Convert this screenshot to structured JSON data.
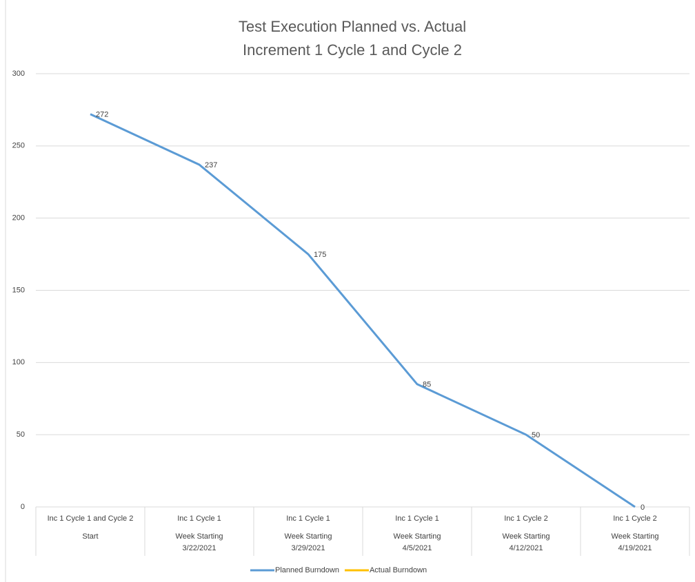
{
  "chart_data": {
    "type": "line",
    "title": [
      "Test Execution Planned vs. Actual",
      "Increment 1 Cycle 1 and Cycle 2"
    ],
    "categories": [
      [
        "Inc 1 Cycle 1 and Cycle 2",
        "Start"
      ],
      [
        "Inc 1 Cycle 1",
        "Week Starting 3/22/2021"
      ],
      [
        "Inc 1 Cycle 1",
        "Week Starting 3/29/2021"
      ],
      [
        "Inc 1 Cycle 1",
        "Week Starting 4/5/2021"
      ],
      [
        "Inc 1 Cycle 2",
        "Week Starting 4/12/2021"
      ],
      [
        "Inc 1 Cycle 2",
        "Week Starting 4/19/2021"
      ]
    ],
    "series": [
      {
        "name": "Planned Burndown",
        "color": "#5b9bd5",
        "values": [
          272,
          237,
          175,
          85,
          50,
          0
        ],
        "data_labels": true
      },
      {
        "name": "Actual Burndown",
        "color": "#ffc000",
        "values": [
          null,
          null,
          null,
          null,
          null,
          null
        ]
      }
    ],
    "ylim": [
      0,
      300
    ],
    "yticks": [
      0,
      50,
      100,
      150,
      200,
      250,
      300
    ],
    "grid": true,
    "legend": "bottom"
  }
}
